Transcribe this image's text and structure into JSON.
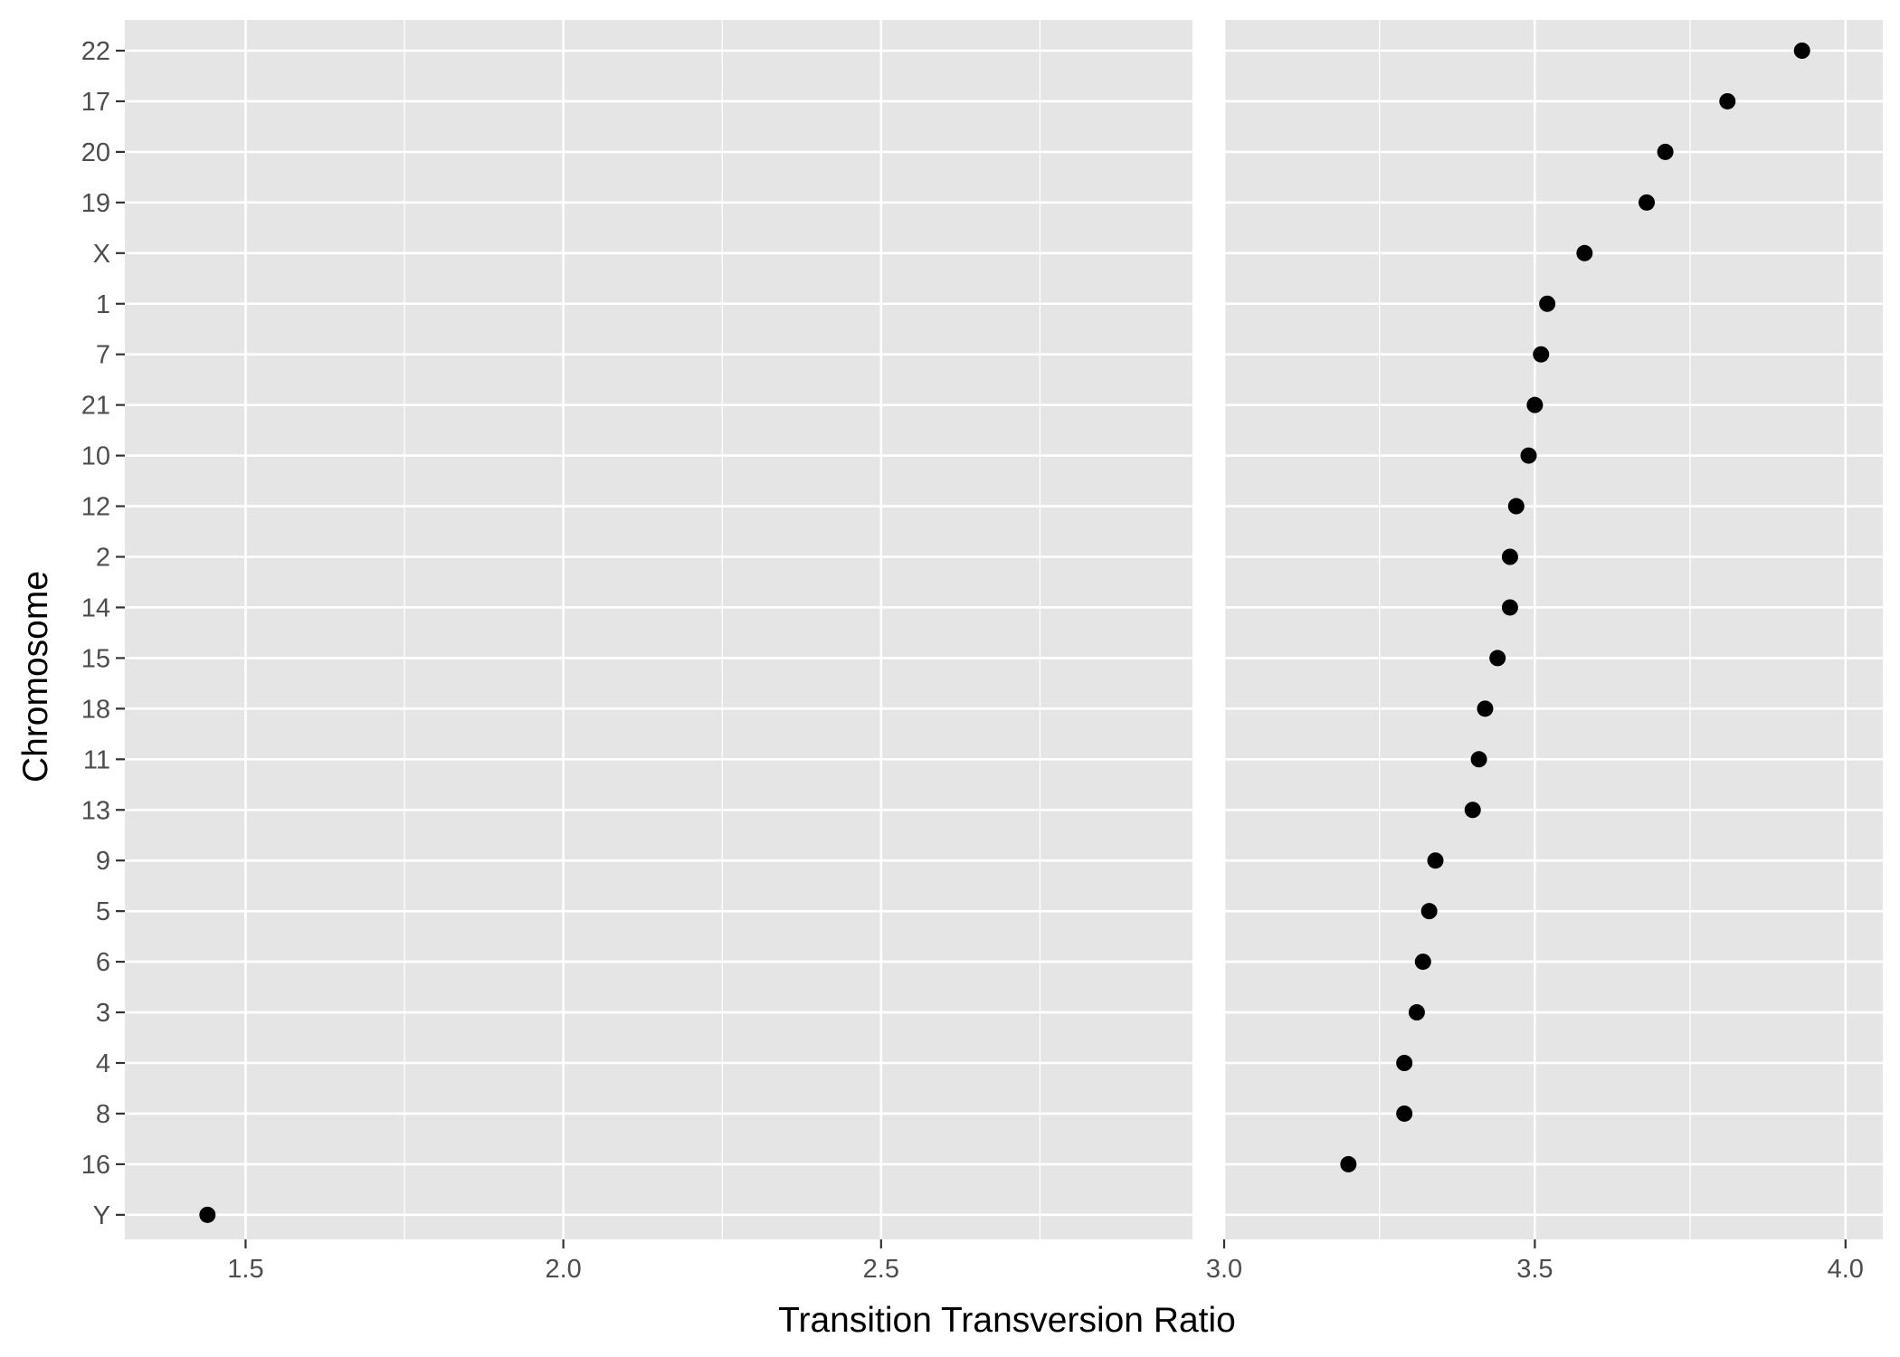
{
  "chart_data": {
    "type": "scatter",
    "xlabel": "Transition Transversion Ratio",
    "ylabel": "Chromosome",
    "categories": [
      "Y",
      "16",
      "8",
      "4",
      "3",
      "6",
      "5",
      "9",
      "13",
      "11",
      "18",
      "15",
      "14",
      "2",
      "12",
      "10",
      "21",
      "7",
      "1",
      "X",
      "19",
      "20",
      "17",
      "22"
    ],
    "points": [
      {
        "chromosome": "22",
        "ratio": 3.93
      },
      {
        "chromosome": "17",
        "ratio": 3.81
      },
      {
        "chromosome": "20",
        "ratio": 3.71
      },
      {
        "chromosome": "19",
        "ratio": 3.68
      },
      {
        "chromosome": "X",
        "ratio": 3.58
      },
      {
        "chromosome": "1",
        "ratio": 3.52
      },
      {
        "chromosome": "7",
        "ratio": 3.51
      },
      {
        "chromosome": "21",
        "ratio": 3.5
      },
      {
        "chromosome": "10",
        "ratio": 3.49
      },
      {
        "chromosome": "12",
        "ratio": 3.47
      },
      {
        "chromosome": "2",
        "ratio": 3.46
      },
      {
        "chromosome": "14",
        "ratio": 3.46
      },
      {
        "chromosome": "15",
        "ratio": 3.44
      },
      {
        "chromosome": "18",
        "ratio": 3.42
      },
      {
        "chromosome": "11",
        "ratio": 3.41
      },
      {
        "chromosome": "13",
        "ratio": 3.4
      },
      {
        "chromosome": "9",
        "ratio": 3.34
      },
      {
        "chromosome": "5",
        "ratio": 3.33
      },
      {
        "chromosome": "6",
        "ratio": 3.32
      },
      {
        "chromosome": "3",
        "ratio": 3.31
      },
      {
        "chromosome": "4",
        "ratio": 3.29
      },
      {
        "chromosome": "8",
        "ratio": 3.29
      },
      {
        "chromosome": "16",
        "ratio": 3.2
      },
      {
        "chromosome": "Y",
        "ratio": 1.44
      }
    ],
    "panels": [
      {
        "xlim": [
          1.31,
          2.99
        ],
        "xticks": [
          1.5,
          2.0,
          2.5
        ],
        "xtick_labels": [
          "1.5",
          "2.0",
          "2.5"
        ]
      },
      {
        "xlim": [
          3.0,
          4.06
        ],
        "xticks": [
          3.0,
          3.5,
          4.0
        ],
        "xtick_labels": [
          "3.0",
          "3.5",
          "4.0"
        ]
      }
    ],
    "grid": true,
    "legend": "none"
  }
}
